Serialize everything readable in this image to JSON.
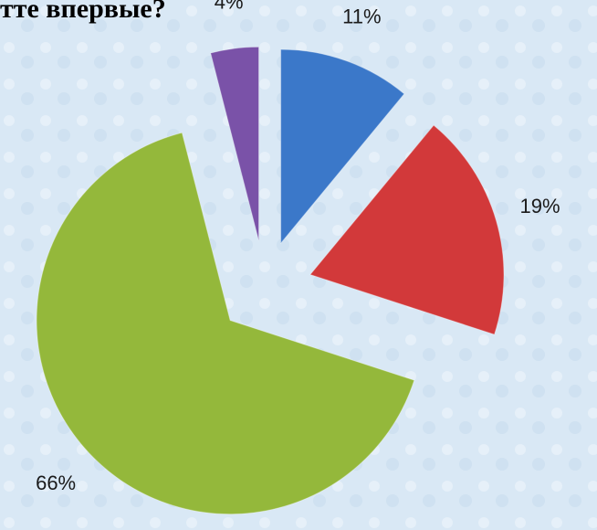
{
  "chart_data": {
    "type": "pie",
    "title": "тте впервые?",
    "categories": [
      null,
      null,
      null,
      null
    ],
    "values": [
      11,
      19,
      66,
      4
    ],
    "value_labels": [
      "11%",
      "19%",
      "66%",
      "4%"
    ],
    "colors": [
      "#3b78c9",
      "#d2393a",
      "#94b83b",
      "#7a52a8"
    ],
    "start_angle": 0,
    "direction": "clockwise",
    "exploded": true
  }
}
